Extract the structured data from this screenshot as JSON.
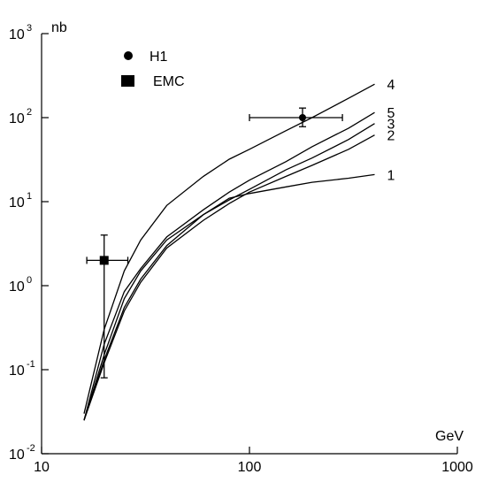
{
  "chart_data": {
    "type": "line",
    "x_scale": "log",
    "y_scale": "log",
    "xlim": [
      10,
      1000
    ],
    "ylim": [
      0.01,
      1000
    ],
    "xlabel": "GeV",
    "ylabel": "nb",
    "grid": false,
    "legend_position": "top-left",
    "x_ticks": [
      {
        "value": 10,
        "label": "10"
      },
      {
        "value": 100,
        "label": "100"
      },
      {
        "value": 1000,
        "label": "1000"
      }
    ],
    "y_ticks": [
      {
        "value": 0.01,
        "base": "10",
        "exp": "-2"
      },
      {
        "value": 0.1,
        "base": "10",
        "exp": "-1"
      },
      {
        "value": 1,
        "base": "10",
        "exp": "0"
      },
      {
        "value": 10,
        "base": "10",
        "exp": "1"
      },
      {
        "value": 100,
        "base": "10",
        "exp": "2"
      },
      {
        "value": 1000,
        "base": "10",
        "exp": "3"
      }
    ],
    "legend": [
      {
        "name": "H1",
        "marker": "circle"
      },
      {
        "name": "EMC",
        "marker": "square"
      }
    ],
    "series": [
      {
        "name": "1",
        "points": [
          [
            16,
            0.025
          ],
          [
            20,
            0.15
          ],
          [
            25,
            0.7
          ],
          [
            30,
            1.5
          ],
          [
            40,
            3.5
          ],
          [
            60,
            7
          ],
          [
            80,
            11
          ],
          [
            100,
            12.5
          ],
          [
            150,
            15
          ],
          [
            200,
            17
          ],
          [
            300,
            19
          ],
          [
            400,
            21
          ]
        ]
      },
      {
        "name": "2",
        "points": [
          [
            16,
            0.025
          ],
          [
            20,
            0.12
          ],
          [
            25,
            0.5
          ],
          [
            30,
            1.1
          ],
          [
            40,
            2.8
          ],
          [
            60,
            6
          ],
          [
            80,
            9.5
          ],
          [
            100,
            13
          ],
          [
            150,
            20
          ],
          [
            200,
            27
          ],
          [
            300,
            42
          ],
          [
            400,
            62
          ]
        ]
      },
      {
        "name": "3",
        "points": [
          [
            16,
            0.025
          ],
          [
            20,
            0.13
          ],
          [
            25,
            0.55
          ],
          [
            30,
            1.2
          ],
          [
            40,
            3
          ],
          [
            60,
            7
          ],
          [
            80,
            10.5
          ],
          [
            100,
            14
          ],
          [
            150,
            24
          ],
          [
            200,
            33
          ],
          [
            300,
            55
          ],
          [
            400,
            85
          ]
        ]
      },
      {
        "name": "5",
        "points": [
          [
            16,
            0.025
          ],
          [
            20,
            0.2
          ],
          [
            25,
            0.85
          ],
          [
            30,
            1.6
          ],
          [
            40,
            3.8
          ],
          [
            60,
            8
          ],
          [
            80,
            13
          ],
          [
            100,
            18
          ],
          [
            150,
            30
          ],
          [
            200,
            45
          ],
          [
            300,
            75
          ],
          [
            400,
            115
          ]
        ]
      },
      {
        "name": "4",
        "points": [
          [
            16,
            0.03
          ],
          [
            20,
            0.3
          ],
          [
            25,
            1.5
          ],
          [
            30,
            3.5
          ],
          [
            40,
            9
          ],
          [
            60,
            20
          ],
          [
            80,
            32
          ],
          [
            100,
            42
          ],
          [
            150,
            70
          ],
          [
            200,
            100
          ],
          [
            300,
            170
          ],
          [
            400,
            250
          ]
        ]
      }
    ],
    "data_points": [
      {
        "name": "H1",
        "marker": "circle",
        "x": 180,
        "y": 100,
        "xerr": [
          100,
          280
        ],
        "yerr": [
          78,
          130
        ]
      },
      {
        "name": "EMC",
        "marker": "square",
        "x": 20,
        "y": 2,
        "xerr": [
          16.5,
          26
        ],
        "yerr": [
          0.08,
          4
        ]
      }
    ]
  }
}
